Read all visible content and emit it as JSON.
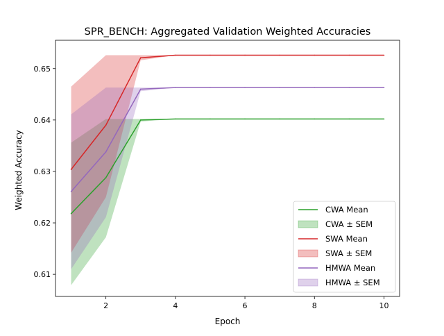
{
  "chart_data": {
    "type": "line",
    "title": "SPR_BENCH: Aggregated Validation Weighted Accuracies",
    "xlabel": "Epoch",
    "ylabel": "Weighted Accuracy",
    "xlim": [
      0.55,
      10.45
    ],
    "ylim": [
      0.6057,
      0.6555
    ],
    "xticks": [
      "2",
      "4",
      "6",
      "8",
      "10"
    ],
    "yticks": [
      "0.61",
      "0.62",
      "0.63",
      "0.64",
      "0.65"
    ],
    "legend_position": "lower-right",
    "x": [
      1,
      2,
      3,
      4,
      5,
      6,
      7,
      8,
      9,
      10
    ],
    "series": [
      {
        "name": "CWA Mean",
        "band_name": "CWA ± SEM",
        "color": "#2ca02c",
        "values": [
          0.6218,
          0.6288,
          0.64,
          0.6402,
          0.6402,
          0.6402,
          0.6402,
          0.6402,
          0.6402,
          0.6402
        ],
        "lower": [
          0.6079,
          0.6172,
          0.6397,
          0.6402,
          0.6402,
          0.6402,
          0.6402,
          0.6402,
          0.6402,
          0.6402
        ],
        "upper": [
          0.6356,
          0.6402,
          0.6402,
          0.6402,
          0.6402,
          0.6402,
          0.6402,
          0.6402,
          0.6402,
          0.6402
        ]
      },
      {
        "name": "SWA Mean",
        "band_name": "SWA ± SEM",
        "color": "#d62728",
        "values": [
          0.6304,
          0.639,
          0.6521,
          0.6526,
          0.6526,
          0.6526,
          0.6526,
          0.6526,
          0.6526,
          0.6526
        ],
        "lower": [
          0.6142,
          0.625,
          0.6516,
          0.6526,
          0.6526,
          0.6526,
          0.6526,
          0.6526,
          0.6526,
          0.6526
        ],
        "upper": [
          0.6465,
          0.6526,
          0.6526,
          0.6526,
          0.6526,
          0.6526,
          0.6526,
          0.6526,
          0.6526,
          0.6526
        ]
      },
      {
        "name": "HMWA Mean",
        "band_name": "HMWA ± SEM",
        "color": "#9467bd",
        "values": [
          0.6261,
          0.6338,
          0.646,
          0.6463,
          0.6463,
          0.6463,
          0.6463,
          0.6463,
          0.6463,
          0.6463
        ],
        "lower": [
          0.611,
          0.6211,
          0.6456,
          0.6463,
          0.6463,
          0.6463,
          0.6463,
          0.6463,
          0.6463,
          0.6463
        ],
        "upper": [
          0.6411,
          0.6463,
          0.6463,
          0.6463,
          0.6463,
          0.6463,
          0.6463,
          0.6463,
          0.6463,
          0.6463
        ]
      }
    ]
  }
}
